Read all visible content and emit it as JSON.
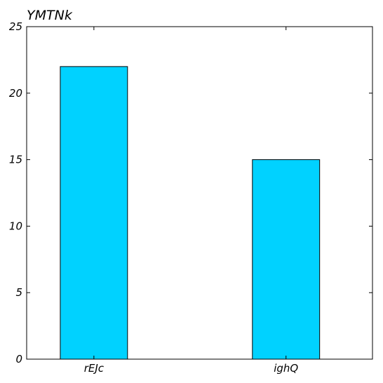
{
  "chart_data": {
    "type": "bar",
    "title": "YMTNk",
    "xlabel": "",
    "ylabel": "",
    "categories": [
      "rEJc",
      "ighQ"
    ],
    "values": [
      22,
      15
    ],
    "ylim": [
      0,
      25
    ],
    "yticks": [
      "0",
      "5",
      "10",
      "15",
      "20",
      "25"
    ],
    "bar_color": "#00d2ff",
    "edge_color": "#000000",
    "grid": false,
    "legend": "none"
  }
}
